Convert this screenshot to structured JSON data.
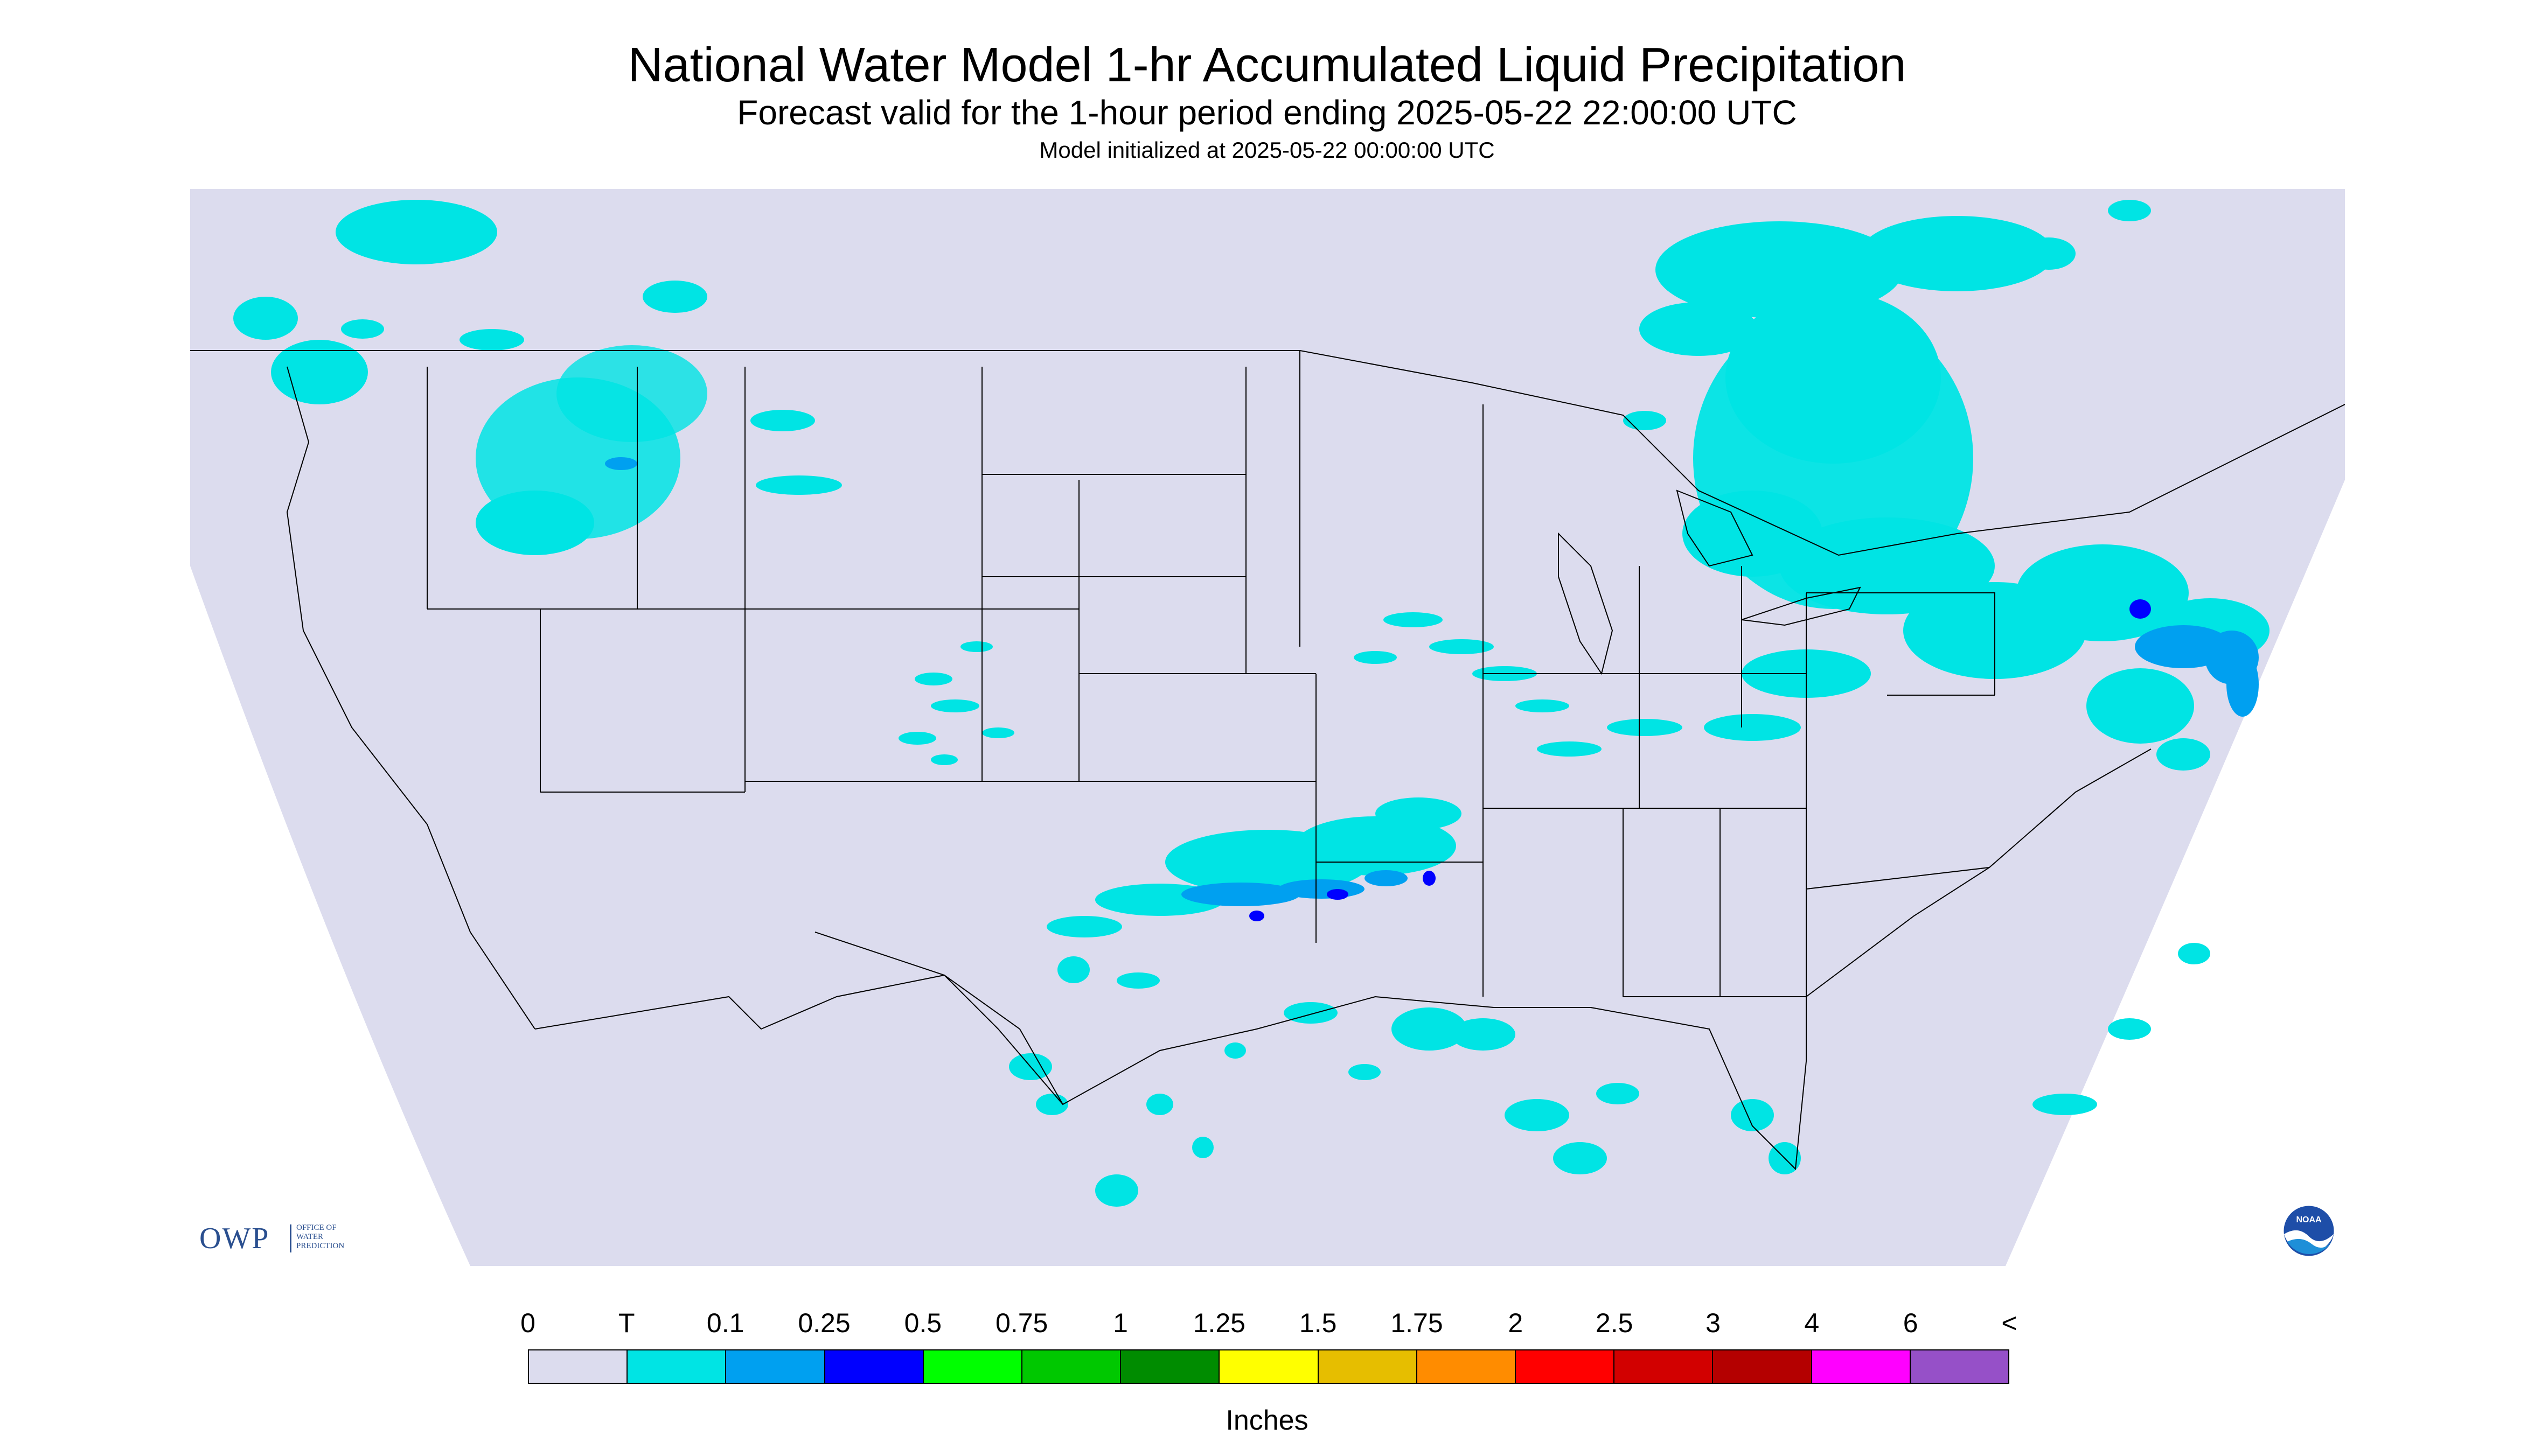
{
  "header": {
    "title": "National Water Model 1-hr Accumulated Liquid Precipitation",
    "subtitle": "Forecast valid for the 1-hour period ending 2025-05-22 22:00:00 UTC",
    "init_line": "Model initialized at 2025-05-22 00:00:00 UTC"
  },
  "map": {
    "background_color": "#dcdcee",
    "outside_color": "#ffffff",
    "boundary_color": "#000000",
    "precip_areas": [
      {
        "region": "Pacific Northwest / Northern Rockies",
        "category": "T"
      },
      {
        "region": "Idaho / Western Montana",
        "category": "0.1"
      },
      {
        "region": "Colorado",
        "category": "T"
      },
      {
        "region": "Central Plains / Iowa",
        "category": "T"
      },
      {
        "region": "Oklahoma / North Texas",
        "category": "0.25"
      },
      {
        "region": "Great Lakes / Ontario / Quebec",
        "category": "T"
      },
      {
        "region": "Pennsylvania / Mid-Atlantic",
        "category": "T"
      },
      {
        "region": "New England coast",
        "category": "0.25"
      },
      {
        "region": "Gulf of Mexico / Louisiana",
        "category": "T"
      },
      {
        "region": "Florida",
        "category": "T"
      },
      {
        "region": "South Texas / Mexico",
        "category": "T"
      }
    ]
  },
  "logos": {
    "owp": {
      "word": "OWP",
      "line1": "OFFICE OF",
      "line2": "WATER",
      "line3": "PREDICTION"
    },
    "noaa": {
      "text": "NOAA",
      "icon": "noaa-logo-icon"
    }
  },
  "legend": {
    "labels": [
      "0",
      "T",
      "0.1",
      "0.25",
      "0.5",
      "0.75",
      "1",
      "1.25",
      "1.5",
      "1.75",
      "2",
      "2.5",
      "3",
      "4",
      "6",
      "<"
    ],
    "colors": [
      "#dcdcee",
      "#00e4e4",
      "#00a0f0",
      "#0000ff",
      "#00ff00",
      "#00c800",
      "#008c00",
      "#ffff00",
      "#e6be00",
      "#ff8c00",
      "#ff0000",
      "#d20000",
      "#b40000",
      "#ff00ff",
      "#9650c8"
    ],
    "units": "Inches"
  }
}
